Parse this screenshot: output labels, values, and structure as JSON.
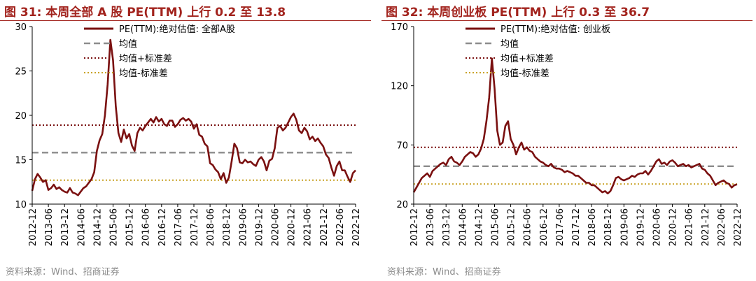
{
  "colors": {
    "line": "#7a1010",
    "mean": "#8c8c8c",
    "upper": "#7a1010",
    "lower": "#c9a227",
    "title": "#a2231d"
  },
  "source": "资料来源：Wind、招商证券",
  "chart_data": [
    {
      "type": "line",
      "title": "图 31:  本周全部 A 股 PE(TTM) 上行 0.2 至 13.8",
      "xlabel": "",
      "ylabel": "",
      "ylim": [
        10,
        30
      ],
      "yticks": [
        10,
        15,
        20,
        25,
        30
      ],
      "xlim": [
        "2012-12",
        "2022-12"
      ],
      "xticks": [
        "2012-12",
        "2013-06",
        "2013-12",
        "2014-06",
        "2014-12",
        "2015-06",
        "2015-12",
        "2016-06",
        "2016-12",
        "2017-06",
        "2017-12",
        "2018-06",
        "2018-12",
        "2019-06",
        "2019-12",
        "2020-06",
        "2020-12",
        "2021-06",
        "2021-12",
        "2022-06",
        "2022-12"
      ],
      "grid": false,
      "legend_position": "top",
      "series": [
        {
          "name": "PE(TTM):绝对估值: 全部A股",
          "style": "solid",
          "x": [
            "2012-12",
            "2013-01",
            "2013-02",
            "2013-03",
            "2013-04",
            "2013-05",
            "2013-06",
            "2013-07",
            "2013-08",
            "2013-09",
            "2013-10",
            "2013-11",
            "2013-12",
            "2014-01",
            "2014-02",
            "2014-03",
            "2014-04",
            "2014-05",
            "2014-06",
            "2014-07",
            "2014-08",
            "2014-09",
            "2014-10",
            "2014-11",
            "2014-12",
            "2015-01",
            "2015-02",
            "2015-03",
            "2015-04",
            "2015-05",
            "2015-06",
            "2015-07",
            "2015-08",
            "2015-09",
            "2015-10",
            "2015-11",
            "2015-12",
            "2016-01",
            "2016-02",
            "2016-03",
            "2016-04",
            "2016-05",
            "2016-06",
            "2016-07",
            "2016-08",
            "2016-09",
            "2016-10",
            "2016-11",
            "2016-12",
            "2017-01",
            "2017-02",
            "2017-03",
            "2017-04",
            "2017-05",
            "2017-06",
            "2017-07",
            "2017-08",
            "2017-09",
            "2017-10",
            "2017-11",
            "2017-12",
            "2018-01",
            "2018-02",
            "2018-03",
            "2018-04",
            "2018-05",
            "2018-06",
            "2018-07",
            "2018-08",
            "2018-09",
            "2018-10",
            "2018-11",
            "2018-12",
            "2019-01",
            "2019-02",
            "2019-03",
            "2019-04",
            "2019-05",
            "2019-06",
            "2019-07",
            "2019-08",
            "2019-09",
            "2019-10",
            "2019-11",
            "2019-12",
            "2020-01",
            "2020-02",
            "2020-03",
            "2020-04",
            "2020-05",
            "2020-06",
            "2020-07",
            "2020-08",
            "2020-09",
            "2020-10",
            "2020-11",
            "2020-12",
            "2021-01",
            "2021-02",
            "2021-03",
            "2021-04",
            "2021-05",
            "2021-06",
            "2021-07",
            "2021-08",
            "2021-09",
            "2021-10",
            "2021-11",
            "2021-12",
            "2022-01",
            "2022-02",
            "2022-03",
            "2022-04",
            "2022-05",
            "2022-06",
            "2022-07",
            "2022-08",
            "2022-09",
            "2022-10",
            "2022-11",
            "2022-12"
          ],
          "y": [
            11.5,
            12.8,
            13.4,
            13.0,
            12.5,
            12.7,
            11.6,
            11.8,
            12.2,
            11.7,
            11.9,
            11.6,
            11.4,
            11.3,
            11.8,
            11.3,
            11.2,
            11.0,
            11.4,
            11.8,
            12.0,
            12.4,
            12.8,
            13.6,
            16.0,
            17.2,
            17.9,
            20.0,
            23.5,
            28.5,
            26.2,
            21.0,
            18.0,
            17.0,
            18.4,
            17.4,
            17.9,
            16.6,
            16.0,
            18.0,
            18.6,
            18.3,
            18.8,
            19.2,
            19.6,
            19.2,
            19.8,
            19.3,
            19.6,
            19.0,
            18.8,
            19.4,
            19.4,
            18.7,
            19.0,
            19.5,
            19.7,
            19.4,
            19.6,
            19.3,
            18.5,
            19.0,
            17.8,
            17.6,
            16.8,
            16.5,
            14.6,
            14.4,
            13.9,
            13.6,
            12.8,
            13.5,
            12.4,
            13.0,
            14.8,
            16.8,
            16.3,
            14.7,
            14.6,
            15.0,
            14.7,
            14.8,
            14.5,
            14.3,
            15.0,
            15.3,
            14.8,
            13.8,
            14.9,
            15.1,
            16.3,
            18.6,
            18.8,
            18.3,
            18.6,
            19.2,
            19.8,
            20.2,
            19.5,
            18.3,
            18.0,
            18.6,
            18.2,
            17.3,
            17.6,
            17.1,
            17.4,
            16.9,
            16.5,
            15.6,
            15.2,
            14.1,
            13.2,
            14.3,
            14.8,
            13.8,
            13.8,
            13.1,
            12.5,
            13.5,
            13.8
          ]
        },
        {
          "name": "均值",
          "style": "dashed",
          "value": 15.8
        },
        {
          "name": "均值+标准差",
          "style": "dotted",
          "value": 18.9
        },
        {
          "name": "均值-标准差",
          "style": "dotted",
          "value": 12.7
        }
      ]
    },
    {
      "type": "line",
      "title": "图 32:  本周创业板 PE(TTM) 上行 0.3 至 36.7",
      "xlabel": "",
      "ylabel": "",
      "ylim": [
        20,
        170
      ],
      "yticks": [
        20,
        70,
        120,
        170
      ],
      "xlim": [
        "2012-12",
        "2022-12"
      ],
      "xticks": [
        "2012-12",
        "2013-06",
        "2013-12",
        "2014-06",
        "2014-12",
        "2015-06",
        "2015-12",
        "2016-06",
        "2016-12",
        "2017-06",
        "2017-12",
        "2018-06",
        "2018-12",
        "2019-06",
        "2019-12",
        "2020-06",
        "2020-12",
        "2021-06",
        "2021-12",
        "2022-06",
        "2022-12"
      ],
      "grid": false,
      "legend_position": "top",
      "series": [
        {
          "name": "PE(TTM):绝对估值: 创业板",
          "style": "solid",
          "x": [
            "2012-12",
            "2013-01",
            "2013-02",
            "2013-03",
            "2013-04",
            "2013-05",
            "2013-06",
            "2013-07",
            "2013-08",
            "2013-09",
            "2013-10",
            "2013-11",
            "2013-12",
            "2014-01",
            "2014-02",
            "2014-03",
            "2014-04",
            "2014-05",
            "2014-06",
            "2014-07",
            "2014-08",
            "2014-09",
            "2014-10",
            "2014-11",
            "2014-12",
            "2015-01",
            "2015-02",
            "2015-03",
            "2015-04",
            "2015-05",
            "2015-06",
            "2015-07",
            "2015-08",
            "2015-09",
            "2015-10",
            "2015-11",
            "2015-12",
            "2016-01",
            "2016-02",
            "2016-03",
            "2016-04",
            "2016-05",
            "2016-06",
            "2016-07",
            "2016-08",
            "2016-09",
            "2016-10",
            "2016-11",
            "2016-12",
            "2017-01",
            "2017-02",
            "2017-03",
            "2017-04",
            "2017-05",
            "2017-06",
            "2017-07",
            "2017-08",
            "2017-09",
            "2017-10",
            "2017-11",
            "2017-12",
            "2018-01",
            "2018-02",
            "2018-03",
            "2018-04",
            "2018-05",
            "2018-06",
            "2018-07",
            "2018-08",
            "2018-09",
            "2018-10",
            "2018-11",
            "2018-12",
            "2019-01",
            "2019-02",
            "2019-03",
            "2019-04",
            "2019-05",
            "2019-06",
            "2019-07",
            "2019-08",
            "2019-09",
            "2019-10",
            "2019-11",
            "2019-12",
            "2020-01",
            "2020-02",
            "2020-03",
            "2020-04",
            "2020-05",
            "2020-06",
            "2020-07",
            "2020-08",
            "2020-09",
            "2020-10",
            "2020-11",
            "2020-12",
            "2021-01",
            "2021-02",
            "2021-03",
            "2021-04",
            "2021-05",
            "2021-06",
            "2021-07",
            "2021-08",
            "2021-09",
            "2021-10",
            "2021-11",
            "2021-12",
            "2022-01",
            "2022-02",
            "2022-03",
            "2022-04",
            "2022-05",
            "2022-06",
            "2022-07",
            "2022-08",
            "2022-09",
            "2022-10",
            "2022-11",
            "2022-12"
          ],
          "y": [
            30,
            34,
            38,
            42,
            44,
            46,
            43,
            48,
            50,
            52,
            54,
            55,
            53,
            58,
            60,
            56,
            55,
            53,
            56,
            60,
            62,
            64,
            63,
            60,
            62,
            67,
            75,
            90,
            110,
            143,
            118,
            82,
            70,
            72,
            86,
            90,
            75,
            70,
            62,
            68,
            72,
            66,
            68,
            65,
            64,
            60,
            58,
            56,
            55,
            53,
            52,
            54,
            51,
            50,
            50,
            49,
            47,
            48,
            47,
            46,
            44,
            44,
            42,
            40,
            38,
            38,
            36,
            36,
            34,
            32,
            30,
            31,
            29,
            31,
            36,
            42,
            43,
            41,
            40,
            41,
            42,
            44,
            43,
            45,
            46,
            46,
            48,
            45,
            48,
            52,
            56,
            58,
            54,
            55,
            53,
            56,
            57,
            55,
            52,
            53,
            54,
            52,
            53,
            51,
            52,
            53,
            54,
            50,
            49,
            46,
            44,
            40,
            36,
            38,
            39,
            40,
            38,
            37,
            34,
            36,
            36.7
          ]
        },
        {
          "name": "均值",
          "style": "dashed",
          "value": 52
        },
        {
          "name": "均值+标准差",
          "style": "dotted",
          "value": 68
        },
        {
          "name": "均值-标准差",
          "style": "dotted",
          "value": 37
        }
      ]
    }
  ]
}
